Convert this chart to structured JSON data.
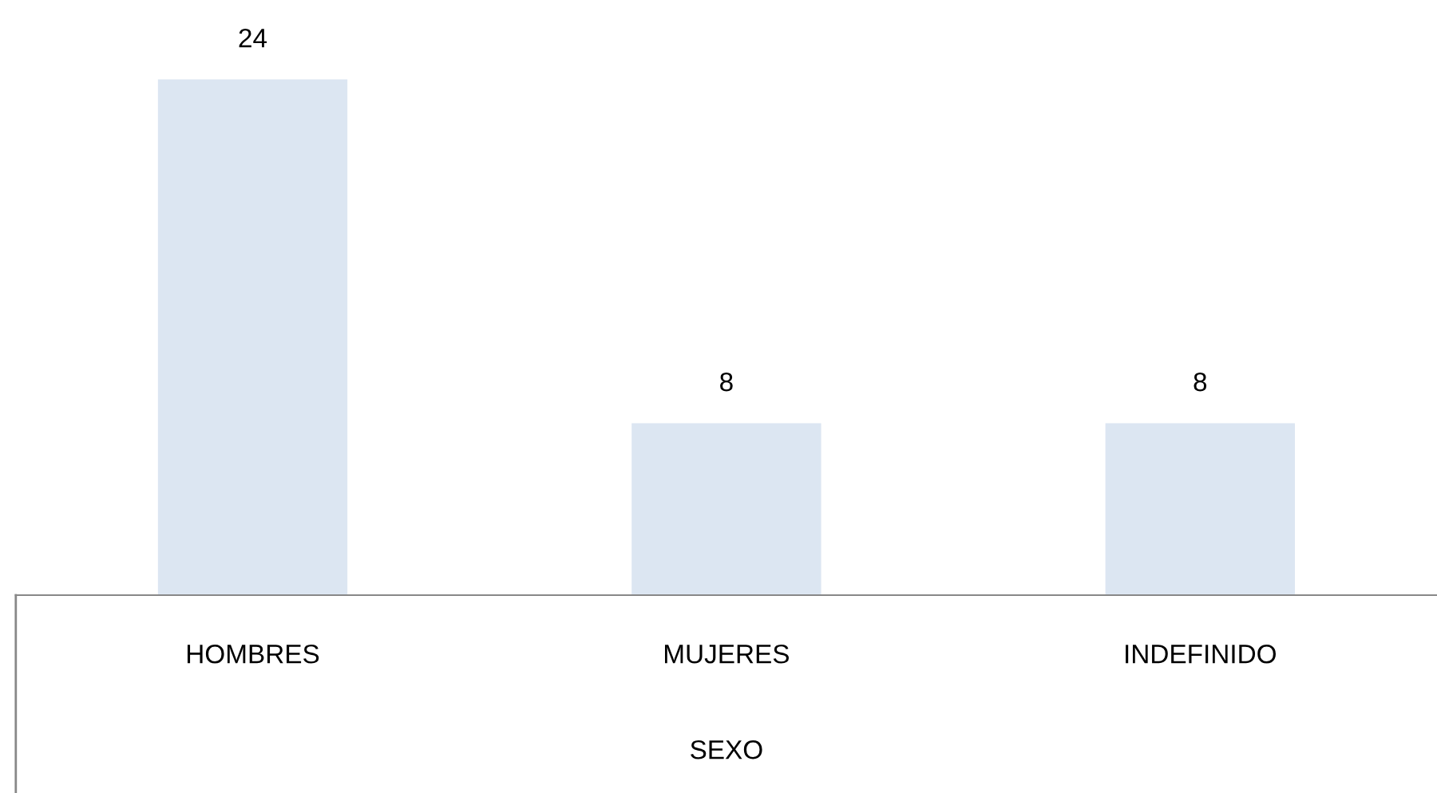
{
  "chart_data": {
    "type": "bar",
    "xlabel": "SEXO",
    "categories": [
      "HOMBRES",
      "MUJERES",
      "INDEFINIDO"
    ],
    "values": [
      24,
      8,
      8
    ],
    "color": "#dce6f2",
    "data_labels": true,
    "grid": false,
    "legend": false,
    "tick_labels": "x"
  }
}
